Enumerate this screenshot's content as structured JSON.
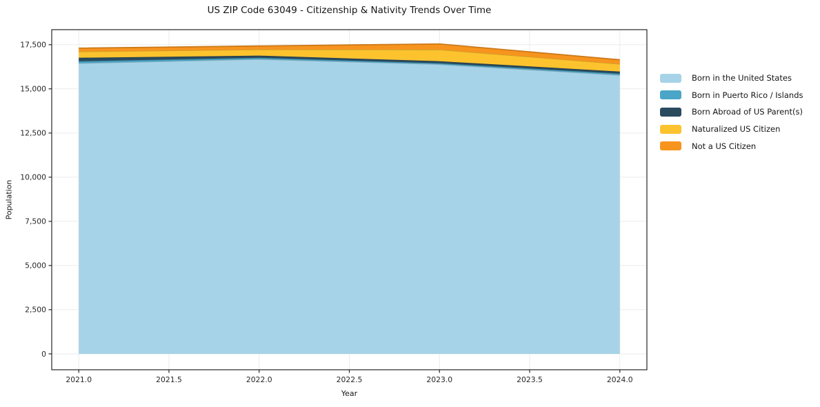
{
  "title": "US ZIP Code 63049 - Citizenship & Nativity Trends Over Time",
  "chart_data": {
    "type": "area",
    "stacked": true,
    "title": "US ZIP Code 63049 - Citizenship & Nativity Trends Over Time",
    "xlabel": "Year",
    "ylabel": "Population",
    "x": [
      2021,
      2022,
      2023,
      2024
    ],
    "series": [
      {
        "name": "Born in the United States",
        "color": "#a7d3e8",
        "values": [
          16450,
          16680,
          16390,
          15780
        ]
      },
      {
        "name": "Born in Puerto Rico / Islands",
        "color": "#4aa5c6",
        "values": [
          115,
          80,
          60,
          80
        ]
      },
      {
        "name": "Born Abroad of US Parent(s)",
        "color": "#2a4a5e",
        "values": [
          195,
          120,
          115,
          120
        ]
      },
      {
        "name": "Naturalized US Citizen",
        "color": "#fcc32f",
        "values": [
          350,
          350,
          660,
          430
        ]
      },
      {
        "name": "Not a US Citizen",
        "color": "#f7941e",
        "values": [
          195,
          195,
          315,
          235
        ]
      }
    ],
    "xticks": [
      2021.0,
      2021.5,
      2022.0,
      2022.5,
      2023.0,
      2023.5,
      2024.0
    ],
    "xtick_labels": [
      "2021.0",
      "2021.5",
      "2022.0",
      "2022.5",
      "2023.0",
      "2023.5",
      "2024.0"
    ],
    "yticks": [
      0,
      2500,
      5000,
      7500,
      10000,
      12500,
      15000,
      17500
    ],
    "ytick_labels": [
      "0",
      "2,500",
      "5,000",
      "7,500",
      "10,000",
      "12,500",
      "15,000",
      "17,500"
    ],
    "xlim": [
      2020.85,
      2024.15
    ],
    "ylim": [
      -900,
      18350
    ],
    "grid": true,
    "legend_position": "right",
    "background_color": "#ffffff",
    "grid_color": "#ebebeb",
    "axis_color": "#262626"
  }
}
